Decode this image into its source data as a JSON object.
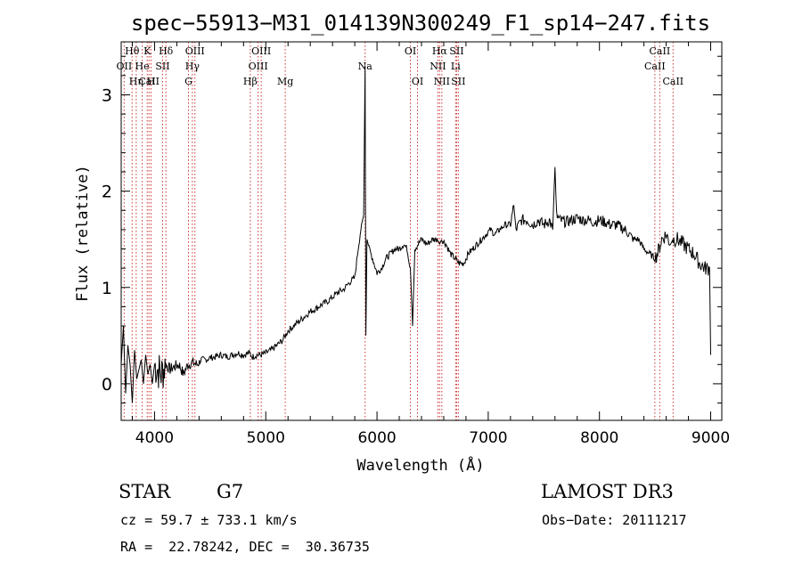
{
  "chart_data": {
    "type": "line",
    "title": "spec−55913−M31_014139N300249_F1_sp14−247.fits",
    "xlabel": "Wavelength (Å)",
    "ylabel": "Flux (relative)",
    "xlim": [
      3700,
      9100
    ],
    "ylim": [
      -0.38,
      3.55
    ],
    "xticks": [
      4000,
      5000,
      6000,
      7000,
      8000,
      9000
    ],
    "yticks": [
      0,
      1,
      2,
      3
    ],
    "series": [
      {
        "name": "spectrum",
        "x": [
          3700,
          3720,
          3740,
          3760,
          3780,
          3800,
          3820,
          3840,
          3860,
          3880,
          3900,
          3920,
          3940,
          3960,
          3980,
          4000,
          4030,
          4060,
          4100,
          4140,
          4180,
          4220,
          4260,
          4300,
          4340,
          4380,
          4420,
          4460,
          4500,
          4550,
          4600,
          4650,
          4700,
          4750,
          4800,
          4850,
          4880,
          4920,
          4960,
          5000,
          5050,
          5100,
          5150,
          5200,
          5250,
          5300,
          5350,
          5400,
          5450,
          5500,
          5550,
          5600,
          5650,
          5700,
          5750,
          5800,
          5830,
          5860,
          5880,
          5893,
          5900,
          5910,
          5930,
          5960,
          6000,
          6040,
          6080,
          6120,
          6160,
          6200,
          6240,
          6270,
          6300,
          6320,
          6340,
          6370,
          6400,
          6450,
          6500,
          6540,
          6563,
          6580,
          6620,
          6660,
          6700,
          6740,
          6780,
          6820,
          6860,
          6900,
          6940,
          6980,
          7020,
          7060,
          7100,
          7150,
          7200,
          7230,
          7250,
          7300,
          7350,
          7400,
          7450,
          7500,
          7550,
          7580,
          7600,
          7615,
          7640,
          7700,
          7750,
          7800,
          7850,
          7900,
          7950,
          8000,
          8050,
          8100,
          8150,
          8200,
          8250,
          8300,
          8350,
          8400,
          8450,
          8500,
          8530,
          8560,
          8600,
          8640,
          8662,
          8700,
          8750,
          8800,
          8850,
          8900,
          8950,
          8990,
          9000
        ],
        "y": [
          0.2,
          0.6,
          -0.1,
          0.4,
          0.2,
          -0.2,
          0.35,
          0.05,
          0.15,
          0.25,
          0.0,
          0.3,
          0.1,
          0.2,
          0.0,
          0.2,
          0.15,
          0.1,
          0.2,
          0.15,
          0.18,
          0.2,
          0.1,
          0.2,
          0.22,
          0.2,
          0.25,
          0.25,
          0.27,
          0.28,
          0.3,
          0.28,
          0.3,
          0.32,
          0.3,
          0.32,
          0.28,
          0.3,
          0.3,
          0.32,
          0.35,
          0.4,
          0.45,
          0.55,
          0.6,
          0.65,
          0.7,
          0.75,
          0.78,
          0.82,
          0.85,
          0.9,
          0.95,
          0.98,
          1.05,
          1.1,
          1.4,
          1.65,
          1.75,
          3.3,
          0.5,
          1.5,
          1.4,
          1.3,
          1.15,
          1.2,
          1.3,
          1.35,
          1.4,
          1.4,
          1.45,
          1.4,
          1.2,
          0.6,
          1.4,
          1.45,
          1.5,
          1.45,
          1.5,
          1.5,
          1.45,
          1.5,
          1.45,
          1.35,
          1.3,
          1.25,
          1.25,
          1.35,
          1.4,
          1.45,
          1.5,
          1.55,
          1.6,
          1.55,
          1.6,
          1.65,
          1.65,
          1.85,
          1.6,
          1.7,
          1.7,
          1.65,
          1.7,
          1.65,
          1.7,
          1.6,
          2.25,
          1.75,
          1.7,
          1.68,
          1.7,
          1.72,
          1.7,
          1.7,
          1.68,
          1.7,
          1.68,
          1.65,
          1.65,
          1.62,
          1.58,
          1.5,
          1.5,
          1.4,
          1.35,
          1.3,
          1.38,
          1.5,
          1.55,
          1.45,
          1.5,
          1.5,
          1.45,
          1.4,
          1.35,
          1.25,
          1.2,
          1.2,
          0.3
        ]
      }
    ],
    "lines_top": [
      {
        "label": "Hθ",
        "x": 3798,
        "row": 0
      },
      {
        "label": "K",
        "x": 3934,
        "row": 0
      },
      {
        "label": "Hδ",
        "x": 4102,
        "row": 0
      },
      {
        "label": "OIII",
        "x": 4363,
        "row": 0
      },
      {
        "label": "OIII",
        "x": 4959,
        "row": 0
      },
      {
        "label": "OI",
        "x": 6300,
        "row": 0
      },
      {
        "label": "Hα",
        "x": 6563,
        "row": 0
      },
      {
        "label": "SII",
        "x": 6716,
        "row": 0
      },
      {
        "label": "CaII",
        "x": 8542,
        "row": 0
      },
      {
        "label": "OII",
        "x": 3727,
        "row": 1
      },
      {
        "label": "He",
        "x": 3889,
        "row": 1
      },
      {
        "label": "SII",
        "x": 4072,
        "row": 1
      },
      {
        "label": "Hγ",
        "x": 4340,
        "row": 1
      },
      {
        "label": "OIII",
        "x": 4931,
        "row": 1
      },
      {
        "label": "NII",
        "x": 6548,
        "row": 1
      },
      {
        "label": "Li",
        "x": 6707,
        "row": 1
      },
      {
        "label": "CaII",
        "x": 8498,
        "row": 1
      },
      {
        "label": "CaII",
        "x": 3950,
        "row": 2
      },
      {
        "label": "Hη",
        "x": 3835,
        "row": 2
      },
      {
        "label": "H",
        "x": 3968,
        "row": 2
      },
      {
        "label": "G",
        "x": 4305,
        "row": 2
      },
      {
        "label": "Hβ",
        "x": 4861,
        "row": 2
      },
      {
        "label": "Mg",
        "x": 5175,
        "row": 2
      },
      {
        "label": "Na",
        "x": 5893,
        "row": 1
      },
      {
        "label": "OI",
        "x": 6364,
        "row": 2
      },
      {
        "label": "NII",
        "x": 6583,
        "row": 2
      },
      {
        "label": "SII",
        "x": 6731,
        "row": 2
      },
      {
        "label": "CaII",
        "x": 8662,
        "row": 2
      }
    ]
  },
  "info": {
    "class": "STAR",
    "subclass": "G7",
    "survey": "LAMOST DR3",
    "cz": "cz = 59.7 ± 733.1 km/s",
    "obs_date": "Obs−Date: 20111217",
    "radec": "RA =  22.78242, DEC =  30.36735"
  },
  "colors": {
    "line": "#000000",
    "marker": "#cc3333",
    "axes": "#000000"
  }
}
